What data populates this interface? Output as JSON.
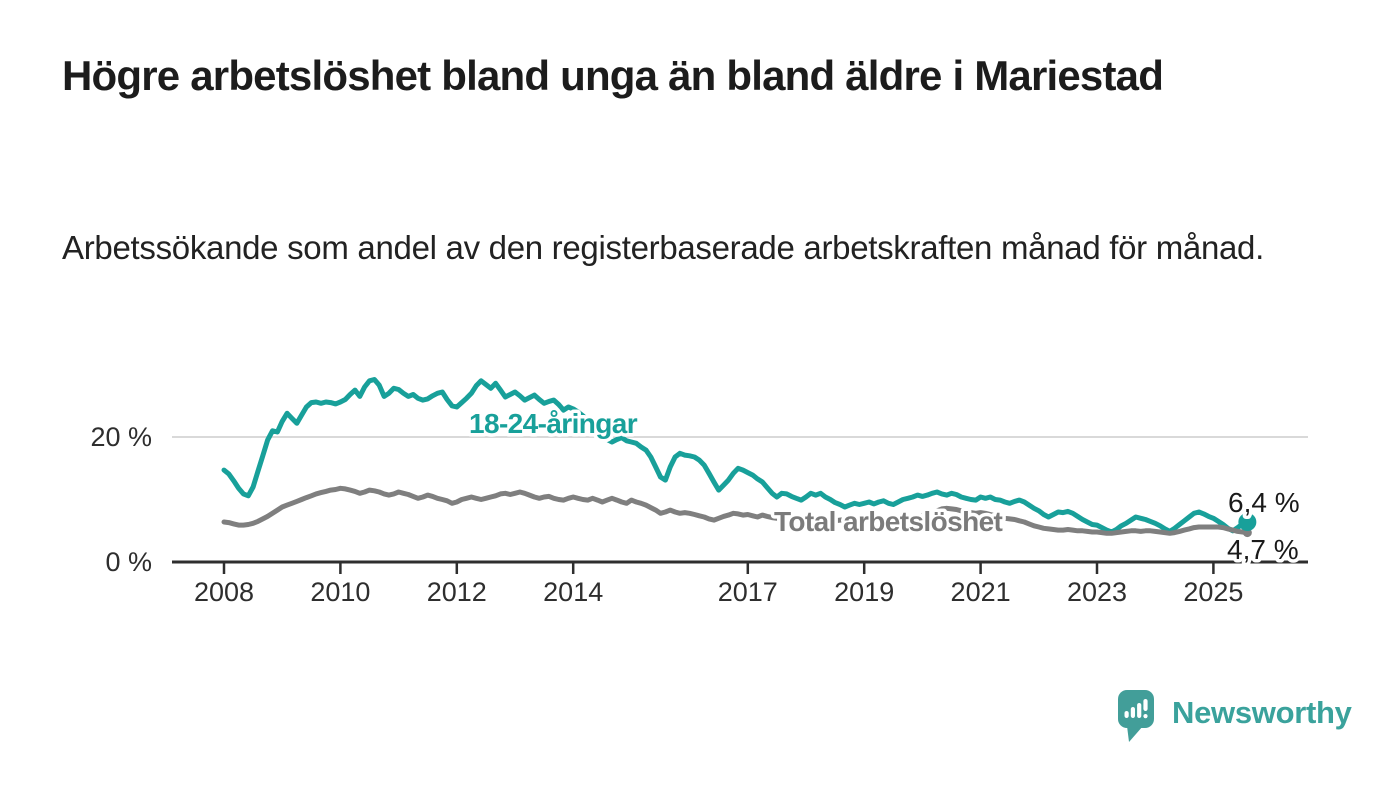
{
  "page": {
    "title": "Högre arbetslöshet bland unga än bland äldre i Mariestad",
    "subtitle": "Arbetssökande som andel av den registerbaserade arbetskraften månad för månad."
  },
  "colors": {
    "youth": "#18A09A",
    "total": "#7F7F7F",
    "youth_label": "#18A09A",
    "total_label": "#7B7B7B",
    "axis": "#2E2E2E",
    "grid": "#D9D9D9",
    "tick_text": "#2E2E2E",
    "end_label_text": "#1A1A1A",
    "ink": "#1C1C1C",
    "ink_soft": "#222222",
    "logo": "#429E99",
    "logo_text": "#3AA29C"
  },
  "chart_data": {
    "type": "line",
    "title": "Högre arbetslöshet bland unga än bland äldre i Mariestad",
    "subtitle": "Arbetssökande som andel av den registerbaserade arbetskraften månad för månad.",
    "unit": "%",
    "start": {
      "year": 2008,
      "month": 1
    },
    "end": {
      "year": 2025,
      "month": 8
    },
    "ylim": [
      0,
      30
    ],
    "gridlines_pct": [
      20
    ],
    "y_tick_labels": [
      "0 %",
      "20 %"
    ],
    "x_tick_labels": [
      "2008",
      "2010",
      "2012",
      "2014",
      "2017",
      "2019",
      "2021",
      "2023",
      "2025"
    ],
    "legend_position": "inline-labels",
    "series": [
      {
        "name": "18-24-åringar",
        "color": "#18A09A",
        "end_label": "6,4 %",
        "end_value": 6.4,
        "values": [
          14.7,
          14.1,
          13.0,
          11.8,
          10.9,
          10.6,
          12.0,
          14.5,
          17.0,
          19.5,
          21.0,
          20.8,
          22.5,
          23.8,
          23.0,
          22.2,
          23.5,
          24.8,
          25.5,
          25.6,
          25.4,
          25.6,
          25.5,
          25.3,
          25.6,
          26.0,
          26.8,
          27.5,
          26.5,
          28.0,
          29.0,
          29.2,
          28.3,
          26.5,
          27.0,
          27.8,
          27.6,
          27.0,
          26.5,
          26.8,
          26.2,
          25.9,
          26.1,
          26.6,
          27.0,
          27.2,
          26.0,
          25.0,
          24.8,
          25.5,
          26.2,
          27.0,
          28.2,
          29.0,
          28.4,
          27.8,
          28.6,
          27.5,
          26.4,
          26.8,
          27.2,
          26.6,
          25.9,
          26.3,
          26.7,
          26.0,
          25.4,
          25.7,
          25.9,
          25.2,
          24.3,
          24.8,
          24.5,
          24.0,
          23.4,
          22.6,
          21.8,
          21.0,
          20.3,
          19.6,
          19.2,
          19.6,
          19.9,
          19.4,
          19.2,
          19.0,
          18.4,
          17.9,
          16.8,
          15.2,
          13.6,
          13.1,
          15.2,
          16.8,
          17.4,
          17.1,
          17.0,
          16.8,
          16.3,
          15.5,
          14.2,
          12.8,
          11.5,
          12.3,
          13.1,
          14.2,
          15.0,
          14.7,
          14.3,
          13.9,
          13.3,
          12.8,
          11.9,
          11.0,
          10.4,
          11.0,
          10.9,
          10.5,
          10.2,
          9.9,
          10.4,
          11.0,
          10.7,
          11.0,
          10.4,
          10.0,
          9.5,
          9.2,
          8.8,
          9.1,
          9.4,
          9.2,
          9.4,
          9.6,
          9.3,
          9.6,
          9.8,
          9.4,
          9.2,
          9.6,
          10.0,
          10.2,
          10.4,
          10.7,
          10.5,
          10.7,
          11.0,
          11.2,
          10.9,
          10.7,
          11.0,
          10.8,
          10.4,
          10.2,
          10.0,
          9.9,
          10.4,
          10.2,
          10.4,
          10.0,
          9.9,
          9.6,
          9.4,
          9.7,
          9.9,
          9.6,
          9.1,
          8.6,
          8.2,
          7.6,
          7.2,
          7.6,
          8.0,
          7.9,
          8.1,
          7.8,
          7.3,
          6.8,
          6.4,
          6.0,
          5.9,
          5.5,
          5.1,
          4.8,
          5.2,
          5.8,
          6.2,
          6.7,
          7.2,
          7.0,
          6.8,
          6.5,
          6.2,
          5.8,
          5.3,
          4.9,
          5.4,
          6.0,
          6.6,
          7.2,
          7.8,
          8.0,
          7.7,
          7.3,
          7.0,
          6.5,
          6.0,
          5.4,
          5.0,
          5.5,
          6.1,
          6.4
        ]
      },
      {
        "name": "Total arbetslöshet",
        "color": "#7F7F7F",
        "end_label": "4,7 %",
        "end_value": 4.7,
        "values": [
          6.4,
          6.3,
          6.1,
          5.9,
          5.9,
          6.0,
          6.2,
          6.5,
          6.9,
          7.3,
          7.8,
          8.3,
          8.8,
          9.1,
          9.4,
          9.7,
          10.0,
          10.3,
          10.6,
          10.9,
          11.1,
          11.3,
          11.5,
          11.6,
          11.8,
          11.7,
          11.5,
          11.3,
          11.0,
          11.2,
          11.5,
          11.4,
          11.2,
          10.9,
          10.7,
          10.9,
          11.2,
          11.0,
          10.8,
          10.5,
          10.2,
          10.4,
          10.7,
          10.5,
          10.2,
          10.0,
          9.8,
          9.4,
          9.6,
          10.0,
          10.2,
          10.4,
          10.2,
          10.0,
          10.2,
          10.4,
          10.6,
          10.9,
          11.0,
          10.8,
          11.0,
          11.2,
          11.0,
          10.7,
          10.4,
          10.2,
          10.4,
          10.5,
          10.2,
          10.0,
          9.9,
          10.2,
          10.4,
          10.2,
          10.0,
          9.9,
          10.2,
          9.9,
          9.6,
          9.9,
          10.2,
          9.9,
          9.6,
          9.4,
          9.9,
          9.6,
          9.4,
          9.1,
          8.7,
          8.3,
          7.8,
          8.0,
          8.3,
          8.0,
          7.8,
          7.9,
          7.8,
          7.6,
          7.4,
          7.2,
          6.9,
          6.7,
          7.0,
          7.3,
          7.5,
          7.8,
          7.7,
          7.5,
          7.6,
          7.4,
          7.2,
          7.5,
          7.3,
          7.1,
          7.0,
          7.2,
          7.3,
          7.1,
          7.0,
          6.9,
          7.2,
          7.4,
          7.2,
          7.0,
          6.8,
          6.7,
          6.6,
          6.7,
          6.8,
          6.7,
          6.6,
          6.7,
          6.8,
          6.9,
          6.8,
          6.7,
          6.8,
          6.9,
          7.0,
          7.1,
          7.0,
          7.1,
          7.2,
          7.3,
          7.4,
          7.5,
          7.8,
          8.2,
          8.5,
          8.6,
          8.5,
          8.4,
          8.2,
          8.0,
          7.9,
          7.8,
          7.9,
          7.8,
          7.6,
          7.4,
          7.2,
          7.0,
          6.9,
          6.8,
          6.6,
          6.4,
          6.1,
          5.8,
          5.6,
          5.4,
          5.3,
          5.2,
          5.1,
          5.1,
          5.2,
          5.1,
          5.0,
          5.0,
          4.9,
          4.8,
          4.8,
          4.7,
          4.6,
          4.6,
          4.7,
          4.8,
          4.9,
          5.0,
          5.0,
          4.9,
          5.0,
          5.0,
          4.9,
          4.8,
          4.7,
          4.6,
          4.7,
          4.9,
          5.1,
          5.3,
          5.5,
          5.6,
          5.6,
          5.6,
          5.6,
          5.6,
          5.5,
          5.3,
          5.1,
          4.9,
          4.8,
          4.7
        ]
      }
    ]
  },
  "footer": {
    "brand": "Newsworthy"
  }
}
